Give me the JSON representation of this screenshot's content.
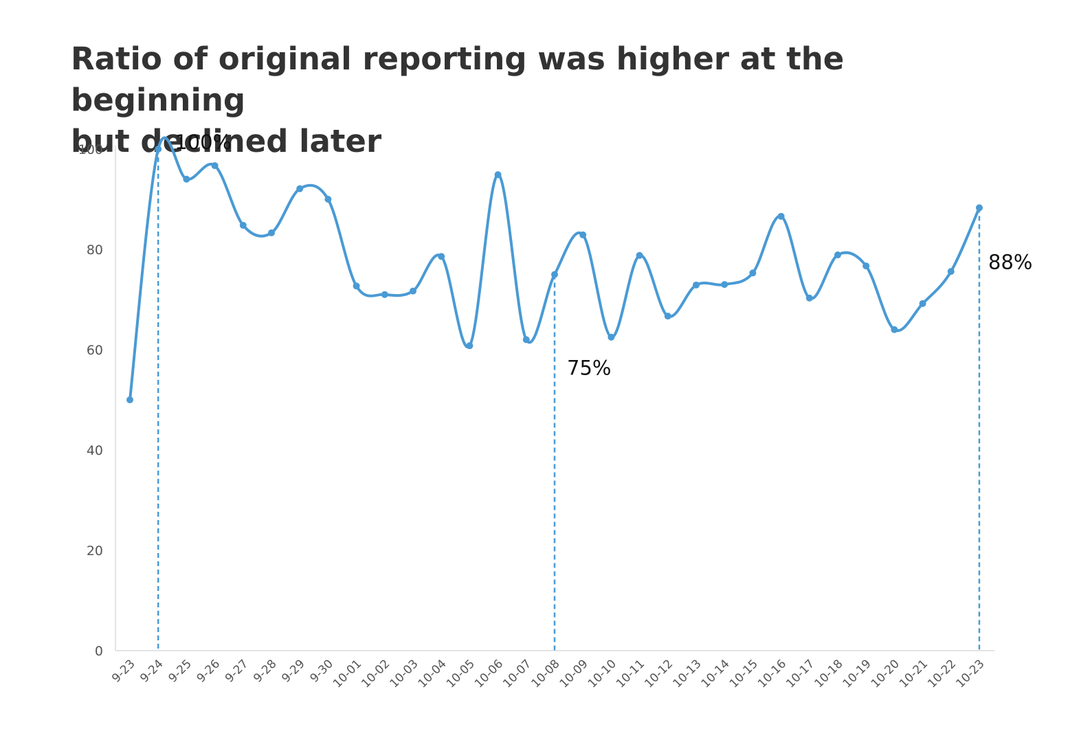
{
  "title_lines": [
    "Ratio of original reporting was higher at the beginning",
    "but declined later"
  ],
  "colors": {
    "line": "#4a9ad4",
    "axis": "#e3e3e3",
    "text": "#333333"
  },
  "chart_data": {
    "type": "line",
    "title": "Ratio of original reporting was higher at the beginning but declined later",
    "xlabel": "",
    "ylabel": "",
    "ylim": [
      0,
      100
    ],
    "yticks": [
      0,
      20,
      40,
      60,
      80,
      100
    ],
    "grid": false,
    "smooth": true,
    "categories": [
      "9-23",
      "9-24",
      "9-25",
      "9-26",
      "9-27",
      "9-28",
      "9-29",
      "9-30",
      "10-01",
      "10-02",
      "10-03",
      "10-04",
      "10-05",
      "10-06",
      "10-07",
      "10-08",
      "10-09",
      "10-10",
      "10-11",
      "10-12",
      "10-13",
      "10-14",
      "10-15",
      "10-16",
      "10-17",
      "10-18",
      "10-19",
      "10-20",
      "10-21",
      "10-22",
      "10-23"
    ],
    "series": [
      {
        "values": [
          50,
          100,
          94,
          96.7,
          84.8,
          83.3,
          92.1,
          90,
          72.7,
          71,
          71.7,
          78.6,
          60.8,
          94.9,
          62,
          75,
          82.9,
          62.5,
          78.8,
          66.7,
          72.9,
          73,
          75.3,
          86.6,
          70.3,
          78.9,
          76.7,
          64,
          69.2,
          75.6,
          88.3
        ]
      }
    ],
    "annotations": [
      {
        "category": "9-24",
        "label": "100%"
      },
      {
        "category": "10-08",
        "label": "75%"
      },
      {
        "category": "10-23",
        "label": "88%"
      }
    ]
  }
}
